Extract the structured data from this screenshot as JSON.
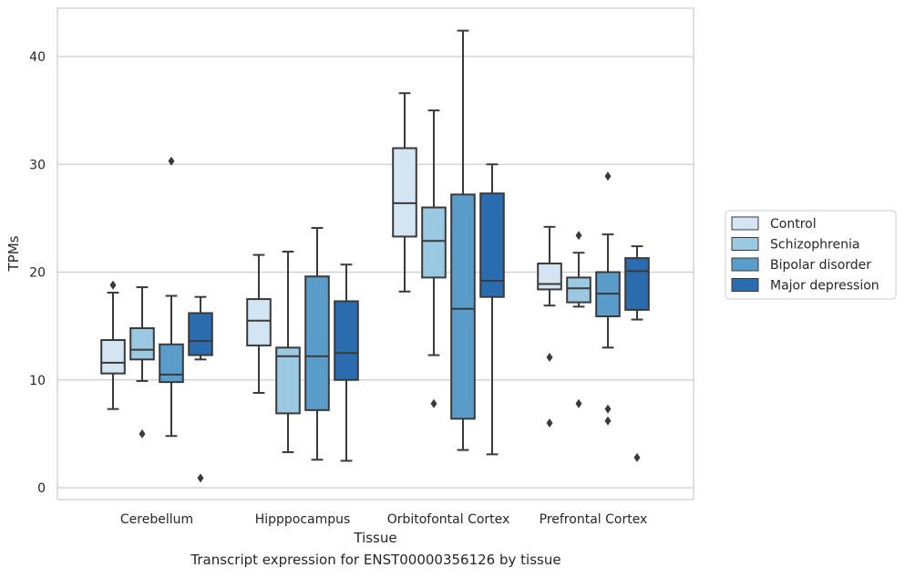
{
  "chart_data": {
    "type": "box",
    "caption": "Transcript expression for ENST00000356126 by tissue",
    "xlabel": "Tissue",
    "ylabel": "TPMs",
    "ylim": [
      -1,
      44.5
    ],
    "yticks": [
      0,
      10,
      20,
      30,
      40
    ],
    "grid": "horizontal",
    "legend_position": "right",
    "categories": [
      "Cerebellum",
      "Hipppocampus",
      "Orbitofontal Cortex",
      "Prefrontal Cortex"
    ],
    "series": [
      {
        "name": "Control",
        "color": "#d3e4f3",
        "boxes": [
          {
            "whislo": 7.3,
            "q1": 10.6,
            "med": 11.6,
            "q3": 13.7,
            "whishi": 18.1,
            "fliers": [
              18.8
            ]
          },
          {
            "whislo": 8.8,
            "q1": 13.2,
            "med": 15.5,
            "q3": 17.5,
            "whishi": 21.6,
            "fliers": []
          },
          {
            "whislo": 18.2,
            "q1": 23.3,
            "med": 26.4,
            "q3": 31.5,
            "whishi": 36.6,
            "fliers": []
          },
          {
            "whislo": 16.9,
            "q1": 18.4,
            "med": 18.9,
            "q3": 20.8,
            "whishi": 24.2,
            "fliers": [
              12.1,
              6.0
            ]
          }
        ]
      },
      {
        "name": "Schizophrenia",
        "color": "#9cc9e2",
        "boxes": [
          {
            "whislo": 9.9,
            "q1": 11.9,
            "med": 12.8,
            "q3": 14.8,
            "whishi": 18.6,
            "fliers": [
              5.0
            ]
          },
          {
            "whislo": 3.3,
            "q1": 6.9,
            "med": 12.2,
            "q3": 13.0,
            "whishi": 21.9,
            "fliers": []
          },
          {
            "whislo": 12.3,
            "q1": 19.5,
            "med": 22.9,
            "q3": 26.0,
            "whishi": 35.0,
            "fliers": [
              7.8
            ]
          },
          {
            "whislo": 16.8,
            "q1": 17.2,
            "med": 18.5,
            "q3": 19.5,
            "whishi": 21.8,
            "fliers": [
              23.4,
              7.8
            ]
          }
        ]
      },
      {
        "name": "Bipolar disorder",
        "color": "#5a9dca",
        "boxes": [
          {
            "whislo": 4.8,
            "q1": 9.8,
            "med": 10.5,
            "q3": 13.3,
            "whishi": 17.8,
            "fliers": [
              30.3
            ]
          },
          {
            "whislo": 2.6,
            "q1": 7.2,
            "med": 12.2,
            "q3": 19.6,
            "whishi": 24.1,
            "fliers": []
          },
          {
            "whislo": 3.5,
            "q1": 6.4,
            "med": 16.6,
            "q3": 27.2,
            "whishi": 42.4,
            "fliers": []
          },
          {
            "whislo": 13.0,
            "q1": 15.9,
            "med": 18.0,
            "q3": 20.0,
            "whishi": 23.5,
            "fliers": [
              28.9,
              7.3,
              6.2
            ]
          }
        ]
      },
      {
        "name": "Major depression",
        "color": "#2a6cae",
        "boxes": [
          {
            "whislo": 11.9,
            "q1": 12.3,
            "med": 13.6,
            "q3": 16.2,
            "whishi": 17.7,
            "fliers": [
              0.9
            ]
          },
          {
            "whislo": 2.5,
            "q1": 10.0,
            "med": 12.5,
            "q3": 17.3,
            "whishi": 20.7,
            "fliers": []
          },
          {
            "whislo": 3.1,
            "q1": 17.7,
            "med": 19.2,
            "q3": 27.3,
            "whishi": 30.0,
            "fliers": []
          },
          {
            "whislo": 15.6,
            "q1": 16.5,
            "med": 20.1,
            "q3": 21.3,
            "whishi": 22.4,
            "fliers": [
              2.8
            ]
          }
        ]
      }
    ]
  }
}
